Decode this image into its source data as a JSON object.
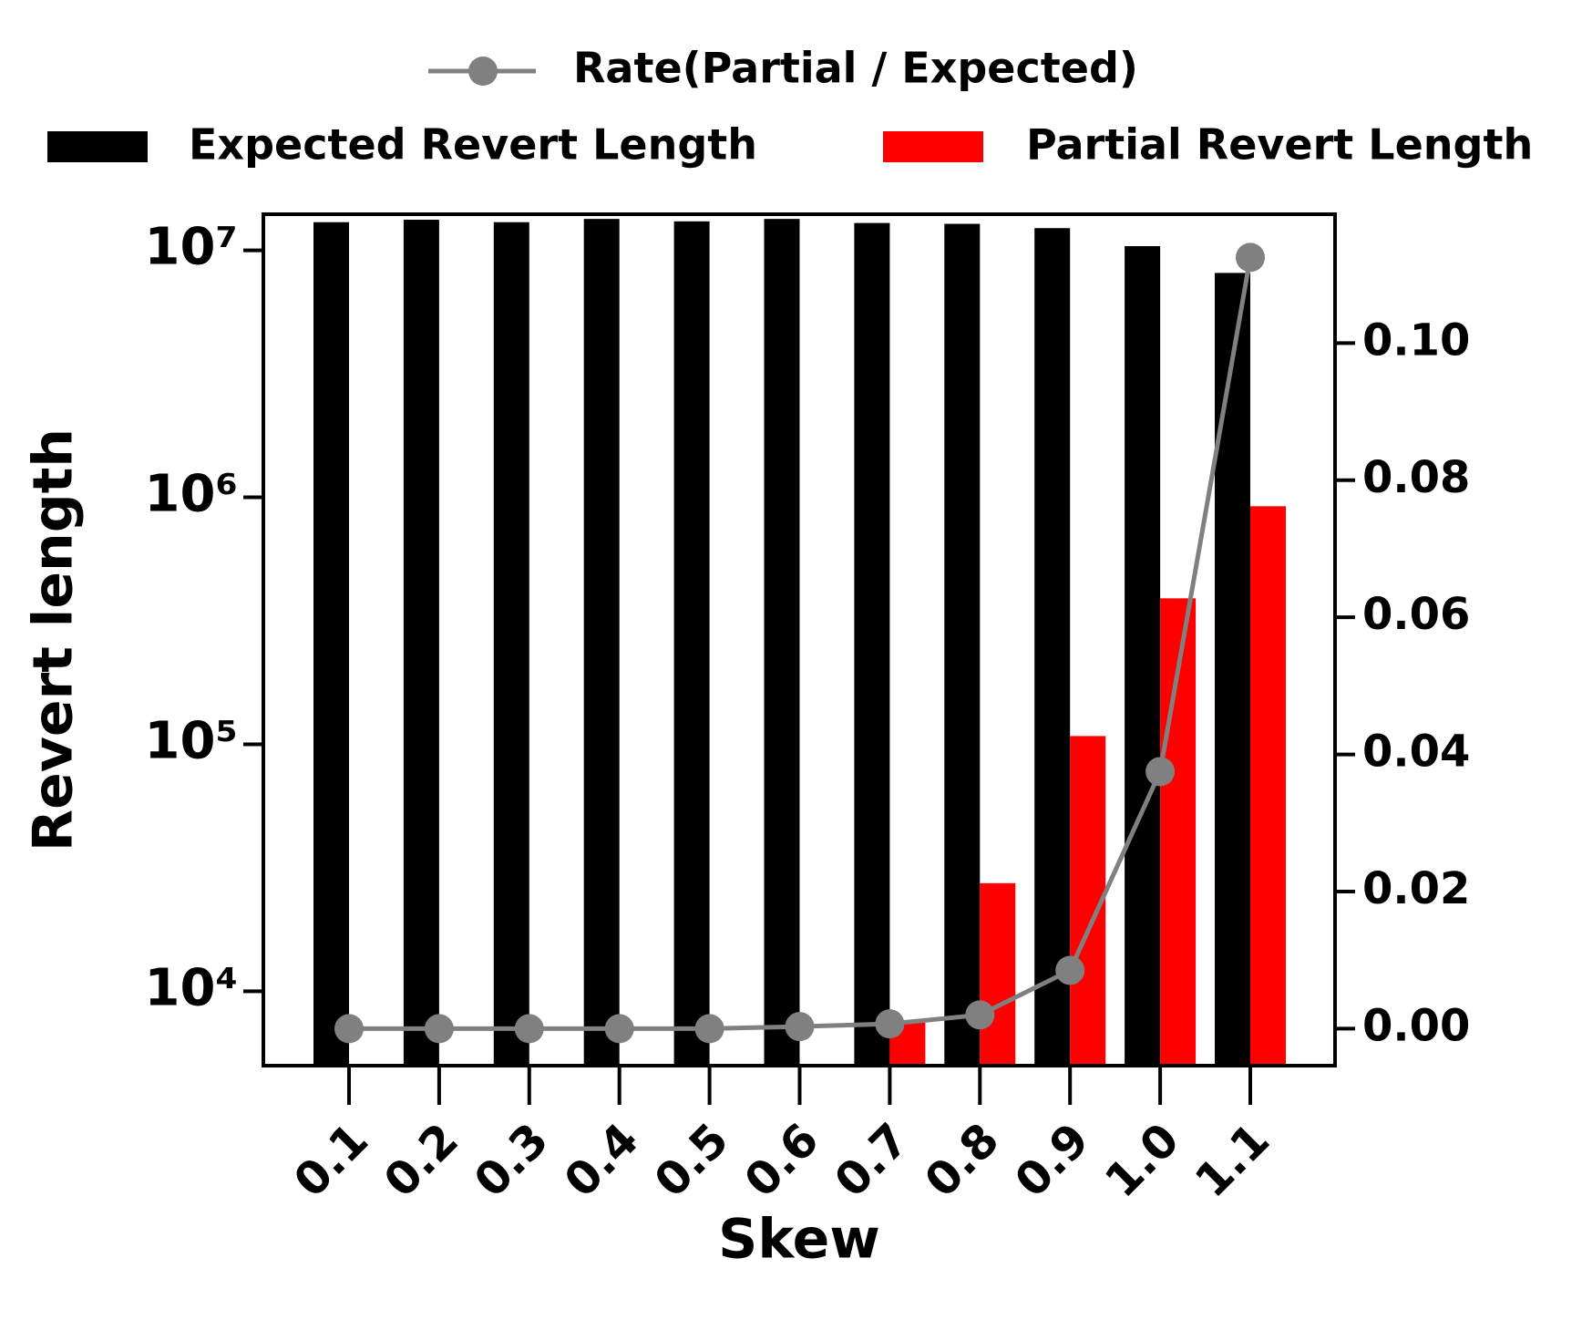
{
  "chart_data": {
    "type": "bar_line_dual",
    "x_label": "Skew",
    "y_label": "Revert length",
    "categories": [
      "0.1",
      "0.2",
      "0.3",
      "0.4",
      "0.5",
      "0.6",
      "0.7",
      "0.8",
      "0.9",
      "1.0",
      "1.1"
    ],
    "series": [
      {
        "name": "Expected Revert Length",
        "type": "bar",
        "color": "#000000",
        "values": [
          13000000,
          13300000,
          13000000,
          13400000,
          13100000,
          13400000,
          12900000,
          12800000,
          12300000,
          10400000,
          8100000
        ]
      },
      {
        "name": "Partial Revert Length",
        "type": "bar",
        "color": "#ff0000",
        "values": [
          null,
          null,
          null,
          null,
          null,
          null,
          7650,
          27400,
          108000,
          390000,
          920000
        ]
      },
      {
        "name": "Rate(Partial / Expected)",
        "type": "line",
        "axis": "y2",
        "color": "#808080",
        "values": [
          0.0,
          0.0,
          0.0,
          0.0,
          0.0,
          0.0003,
          0.0007,
          0.002,
          0.0085,
          0.0375,
          0.1125
        ]
      }
    ],
    "ylog": true,
    "ylim": [
      5000,
      14000000
    ],
    "yticks": [
      {
        "value": 10000,
        "label": "10⁴"
      },
      {
        "value": 100000,
        "label": "10⁵"
      },
      {
        "value": 1000000,
        "label": "10⁶"
      },
      {
        "value": 10000000,
        "label": "10⁷"
      }
    ],
    "y2lim": [
      -0.0054,
      0.1188
    ],
    "y2ticks": [
      {
        "value": 0,
        "label": "0.00"
      },
      {
        "value": 0.02,
        "label": "0.02"
      },
      {
        "value": 0.04,
        "label": "0.04"
      },
      {
        "value": 0.06,
        "label": "0.06"
      },
      {
        "value": 0.08,
        "label": "0.08"
      },
      {
        "value": 0.1,
        "label": "0.10"
      }
    ]
  }
}
